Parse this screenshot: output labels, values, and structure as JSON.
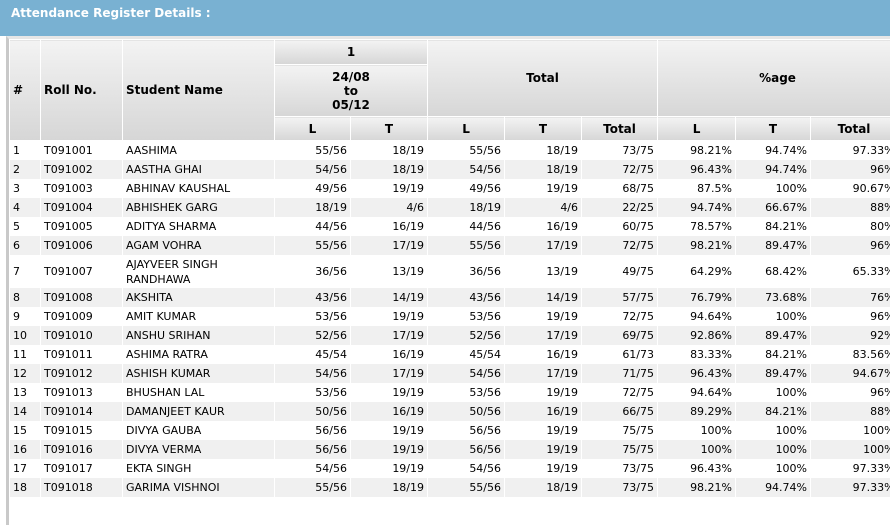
{
  "panel_title": "Attendance Register Details :",
  "headers": {
    "index": "#",
    "roll": "Roll No.",
    "name": "Student Name",
    "group": "1",
    "period": [
      "24/08",
      "to",
      "05/12"
    ],
    "total": "Total",
    "percent": "%age",
    "l": "L",
    "t": "T",
    "tot": "Total"
  },
  "rows": [
    [
      "1",
      "T091001",
      "AASHIMA",
      "55/56",
      "18/19",
      "55/56",
      "18/19",
      "73/75",
      "98.21%",
      "94.74%",
      "97.33%"
    ],
    [
      "2",
      "T091002",
      "AASTHA GHAI",
      "54/56",
      "18/19",
      "54/56",
      "18/19",
      "72/75",
      "96.43%",
      "94.74%",
      "96%"
    ],
    [
      "3",
      "T091003",
      "ABHINAV KAUSHAL",
      "49/56",
      "19/19",
      "49/56",
      "19/19",
      "68/75",
      "87.5%",
      "100%",
      "90.67%"
    ],
    [
      "4",
      "T091004",
      "ABHISHEK GARG",
      "18/19",
      "4/6",
      "18/19",
      "4/6",
      "22/25",
      "94.74%",
      "66.67%",
      "88%"
    ],
    [
      "5",
      "T091005",
      "ADITYA SHARMA",
      "44/56",
      "16/19",
      "44/56",
      "16/19",
      "60/75",
      "78.57%",
      "84.21%",
      "80%"
    ],
    [
      "6",
      "T091006",
      "AGAM VOHRA",
      "55/56",
      "17/19",
      "55/56",
      "17/19",
      "72/75",
      "98.21%",
      "89.47%",
      "96%"
    ],
    [
      "7",
      "T091007",
      "AJAYVEER SINGH RANDHAWA",
      "36/56",
      "13/19",
      "36/56",
      "13/19",
      "49/75",
      "64.29%",
      "68.42%",
      "65.33%"
    ],
    [
      "8",
      "T091008",
      "AKSHITA",
      "43/56",
      "14/19",
      "43/56",
      "14/19",
      "57/75",
      "76.79%",
      "73.68%",
      "76%"
    ],
    [
      "9",
      "T091009",
      "AMIT KUMAR",
      "53/56",
      "19/19",
      "53/56",
      "19/19",
      "72/75",
      "94.64%",
      "100%",
      "96%"
    ],
    [
      "10",
      "T091010",
      "ANSHU SRIHAN",
      "52/56",
      "17/19",
      "52/56",
      "17/19",
      "69/75",
      "92.86%",
      "89.47%",
      "92%"
    ],
    [
      "11",
      "T091011",
      "ASHIMA RATRA",
      "45/54",
      "16/19",
      "45/54",
      "16/19",
      "61/73",
      "83.33%",
      "84.21%",
      "83.56%"
    ],
    [
      "12",
      "T091012",
      "ASHISH KUMAR",
      "54/56",
      "17/19",
      "54/56",
      "17/19",
      "71/75",
      "96.43%",
      "89.47%",
      "94.67%"
    ],
    [
      "13",
      "T091013",
      "BHUSHAN LAL",
      "53/56",
      "19/19",
      "53/56",
      "19/19",
      "72/75",
      "94.64%",
      "100%",
      "96%"
    ],
    [
      "14",
      "T091014",
      "DAMANJEET KAUR",
      "50/56",
      "16/19",
      "50/56",
      "16/19",
      "66/75",
      "89.29%",
      "84.21%",
      "88%"
    ],
    [
      "15",
      "T091015",
      "DIVYA GAUBA",
      "56/56",
      "19/19",
      "56/56",
      "19/19",
      "75/75",
      "100%",
      "100%",
      "100%"
    ],
    [
      "16",
      "T091016",
      "DIVYA VERMA",
      "56/56",
      "19/19",
      "56/56",
      "19/19",
      "75/75",
      "100%",
      "100%",
      "100%"
    ],
    [
      "17",
      "T091017",
      "EKTA SINGH",
      "54/56",
      "19/19",
      "54/56",
      "19/19",
      "73/75",
      "96.43%",
      "100%",
      "97.33%"
    ],
    [
      "18",
      "T091018",
      "GARIMA VISHNOI",
      "55/56",
      "18/19",
      "55/56",
      "18/19",
      "73/75",
      "98.21%",
      "94.74%",
      "97.33%"
    ]
  ]
}
